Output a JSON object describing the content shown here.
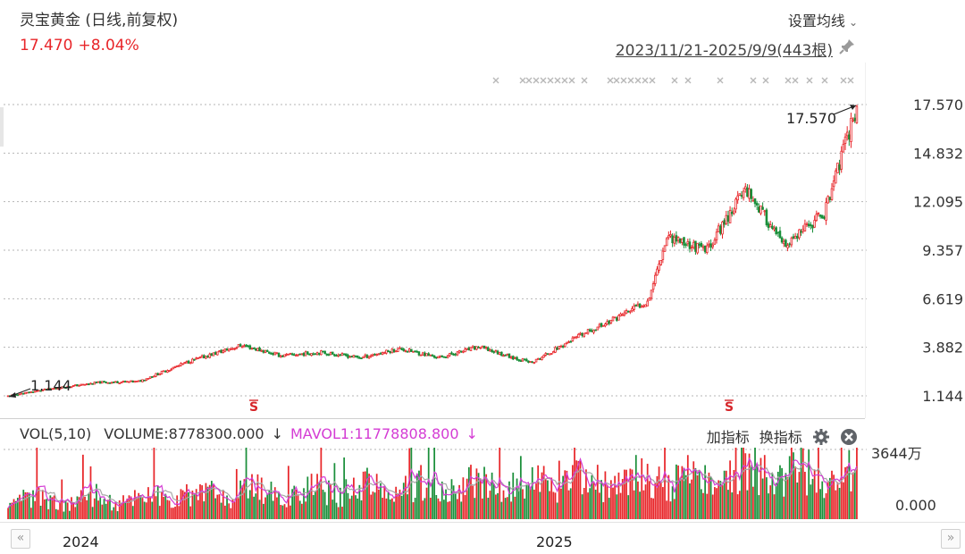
{
  "header": {
    "title": "灵宝黄金 (日线,前复权)",
    "price": "17.470",
    "change": "+8.04%",
    "setting_label": "设置均线",
    "range": "2023/11/21-2025/9/9(443根)",
    "pin_icon": "pin-icon"
  },
  "colors": {
    "up": "#e8262a",
    "down": "#1a8f3a",
    "mavol1": "#d43cd4",
    "mavol2": "#a7a7a7",
    "grid": "#b5b5b5"
  },
  "price_axis": {
    "ticks": [
      "17.570",
      "14.832",
      "12.095",
      "9.357",
      "6.619",
      "3.882",
      "1.144"
    ],
    "high_marker": "17.570",
    "low_marker": "1.144"
  },
  "volume_panel": {
    "label": "VOL(5,10)",
    "volume_label": "VOLUME:8778300.000",
    "volume_arrow": "↓",
    "mavol_label": "MAVOL1:11778808.800",
    "mavol_arrow": "↓",
    "add_indicator": "加指标",
    "switch_indicator": "换指标",
    "axis_top": "3644万",
    "axis_bottom": "0.000"
  },
  "time_axis": {
    "years": [
      "2024",
      "2025"
    ]
  },
  "chart_data": {
    "type": "candlestick",
    "title": "灵宝黄金 (日线,前复权)",
    "period": "2023/11/21-2025/9/9",
    "bar_count": 443,
    "ylim": [
      1.144,
      17.57
    ],
    "price_path": [
      {
        "date": "2023-11-21",
        "close": 1.14
      },
      {
        "date": "2023-12-20",
        "close": 1.5
      },
      {
        "date": "2024-01-31",
        "close": 1.9
      },
      {
        "date": "2024-03-01",
        "close": 1.95
      },
      {
        "date": "2024-04-10",
        "close": 3.1
      },
      {
        "date": "2024-05-20",
        "close": 4.0
      },
      {
        "date": "2024-06-20",
        "close": 3.4
      },
      {
        "date": "2024-07-20",
        "close": 3.6
      },
      {
        "date": "2024-08-20",
        "close": 3.3
      },
      {
        "date": "2024-09-20",
        "close": 3.8
      },
      {
        "date": "2024-10-20",
        "close": 3.3
      },
      {
        "date": "2024-11-20",
        "close": 3.9
      },
      {
        "date": "2024-12-31",
        "close": 3.0
      },
      {
        "date": "2025-01-31",
        "close": 4.3
      },
      {
        "date": "2025-02-28",
        "close": 5.3
      },
      {
        "date": "2025-03-31",
        "close": 6.5
      },
      {
        "date": "2025-04-15",
        "close": 10.2
      },
      {
        "date": "2025-05-15",
        "close": 9.3
      },
      {
        "date": "2025-06-15",
        "close": 12.9
      },
      {
        "date": "2025-07-15",
        "close": 9.5
      },
      {
        "date": "2025-08-15",
        "close": 11.5
      },
      {
        "date": "2025-09-09",
        "close": 17.47
      }
    ],
    "last": {
      "close": 17.47,
      "change_pct": 8.04,
      "volume": 8778300.0,
      "mavol1": 11778808.8
    }
  }
}
